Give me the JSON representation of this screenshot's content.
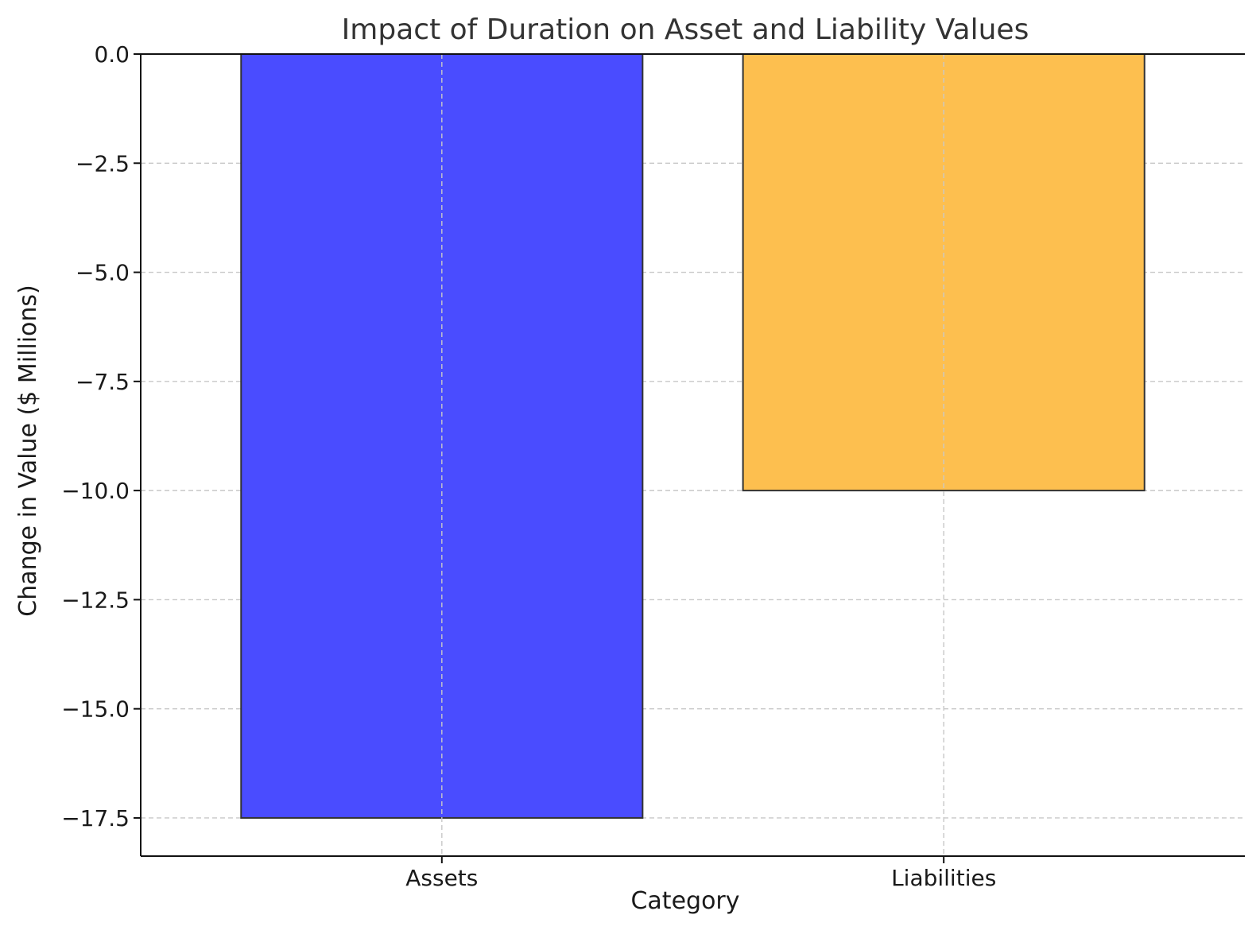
{
  "chart_data": {
    "type": "bar",
    "title": "Impact of Duration on Asset and Liability Values",
    "xlabel": "Category",
    "ylabel": "Change in Value ($ Millions)",
    "categories": [
      "Assets",
      "Liabilities"
    ],
    "values": [
      -17.5,
      -10.0
    ],
    "colors": [
      "#4a4cff",
      "#fdbf4f"
    ],
    "edge_color": "#333333",
    "ylim": [
      -18.375,
      0.0
    ],
    "yticks": [
      0.0,
      -2.5,
      -5.0,
      -7.5,
      -10.0,
      -12.5,
      -15.0,
      -17.5
    ],
    "ytick_labels": [
      "0.0",
      "−2.5",
      "−5.0",
      "−7.5",
      "−10.0",
      "−12.5",
      "−15.0",
      "−17.5"
    ],
    "grid": true,
    "legend": "none"
  }
}
